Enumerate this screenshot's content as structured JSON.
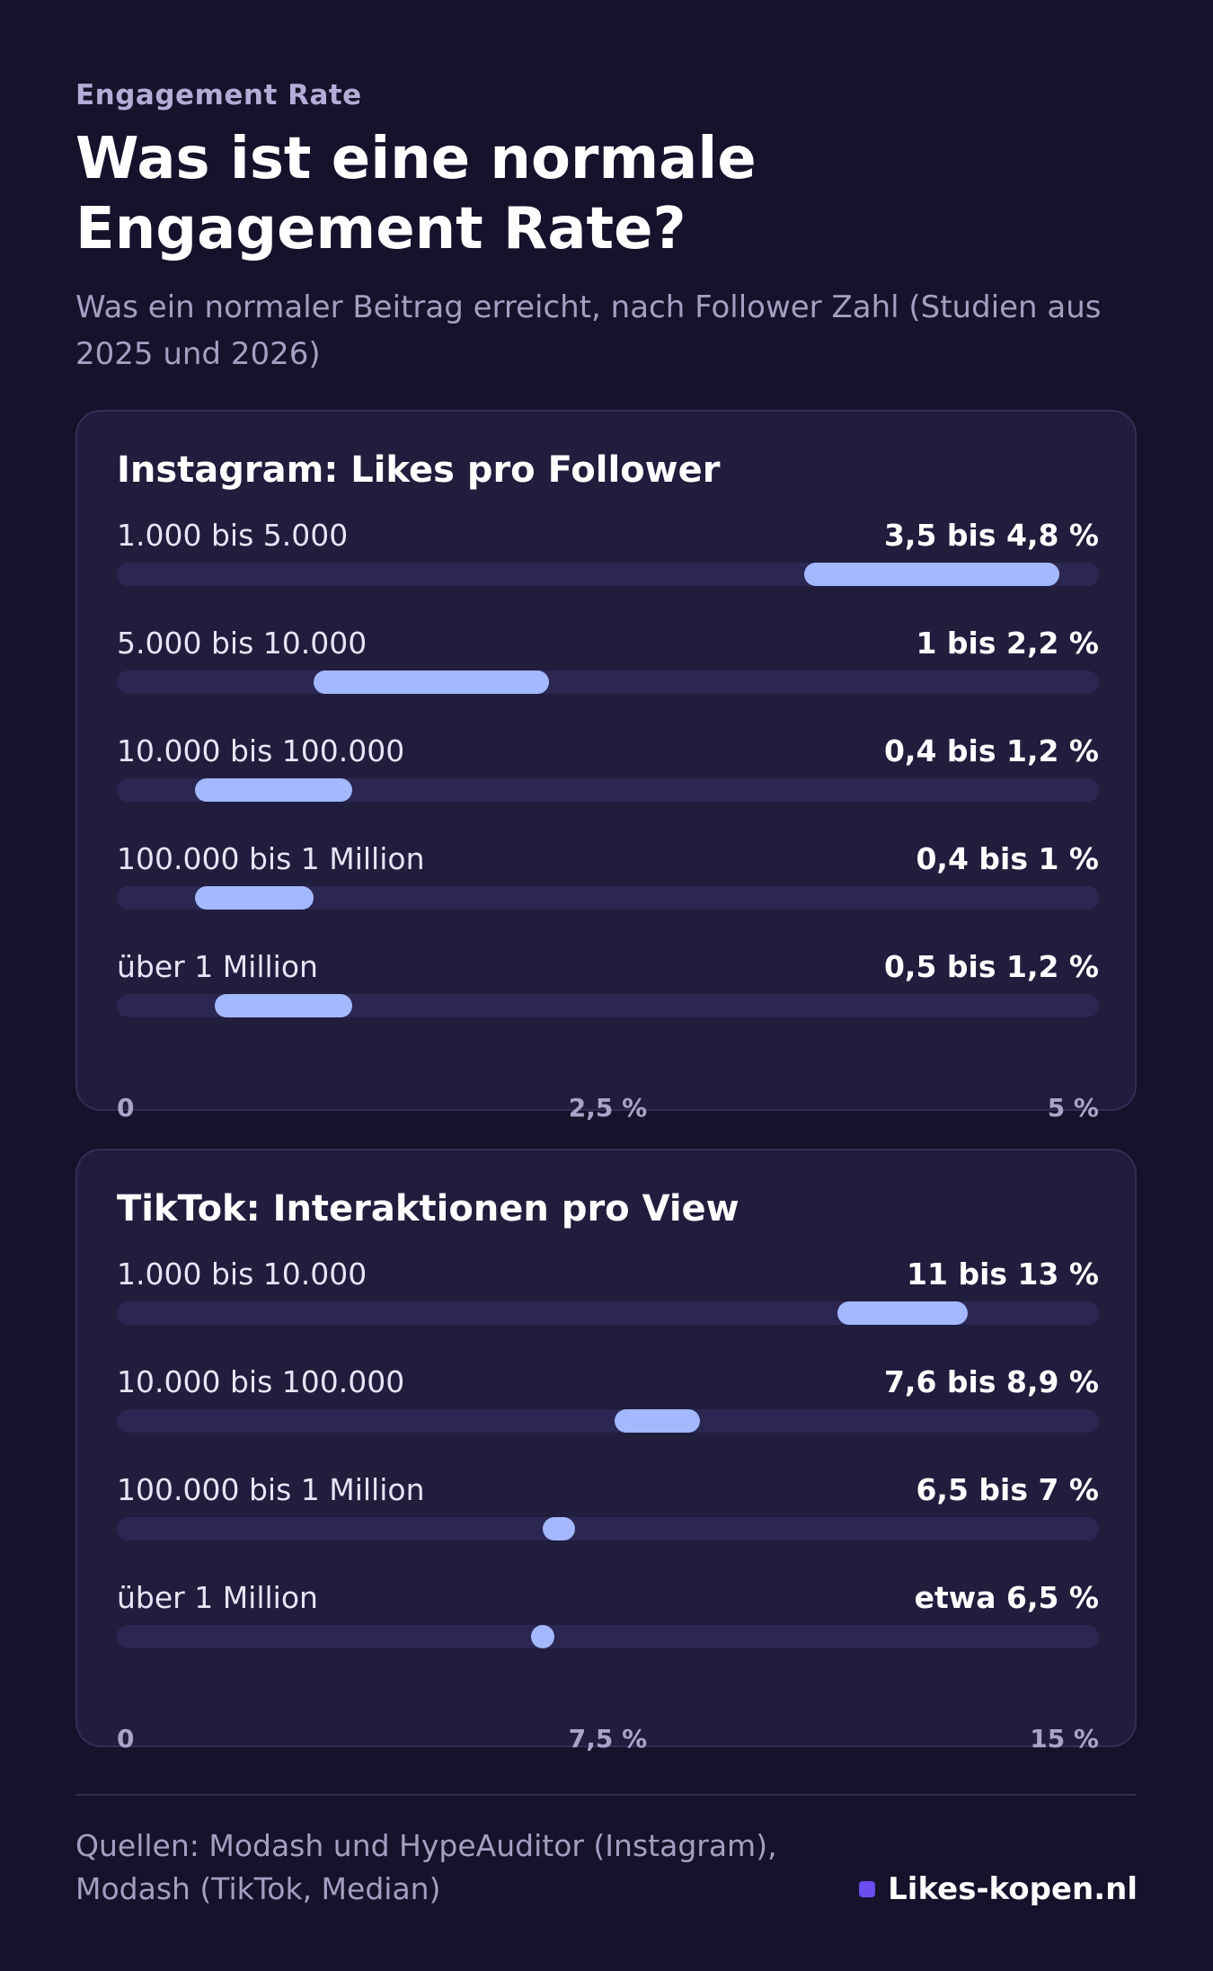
{
  "eyebrow": "Engagement Rate",
  "title": "Was ist eine normale Engagement Rate?",
  "subtitle": "Was ein normaler Beitrag erreicht, nach Follower Zahl (Studien aus 2025 und 2026)",
  "chart_data": [
    {
      "type": "bar",
      "title": "Instagram: Likes pro Follower",
      "categories": [
        "1.000 bis 5.000",
        "5.000 bis 10.000",
        "10.000 bis 100.000",
        "100.000 bis 1 Million",
        "über 1 Million"
      ],
      "value_labels": [
        "3,5 bis 4,8 %",
        "1 bis 2,2 %",
        "0,4 bis 1,2 %",
        "0,4 bis 1 %",
        "0,5 bis 1,2 %"
      ],
      "ranges": [
        [
          3.5,
          4.8
        ],
        [
          1.0,
          2.2
        ],
        [
          0.4,
          1.2
        ],
        [
          0.4,
          1.0
        ],
        [
          0.5,
          1.2
        ]
      ],
      "xlim": [
        0,
        5
      ],
      "ticks": [
        "0",
        "2,5 %",
        "5 %"
      ],
      "grid": false
    },
    {
      "type": "bar",
      "title": "TikTok: Interaktionen pro View",
      "categories": [
        "1.000 bis 10.000",
        "10.000 bis 100.000",
        "100.000 bis 1 Million",
        "über 1 Million"
      ],
      "value_labels": [
        "11 bis 13 %",
        "7,6 bis 8,9 %",
        "6,5 bis 7 %",
        "etwa 6,5 %"
      ],
      "ranges": [
        [
          11,
          13
        ],
        [
          7.6,
          8.9
        ],
        [
          6.5,
          7
        ],
        [
          6.5,
          6.5
        ]
      ],
      "xlim": [
        0,
        15
      ],
      "ticks": [
        "0",
        "7,5 %",
        "15 %"
      ],
      "grid": false
    }
  ],
  "colors": {
    "background": "#15122b",
    "card": "#201d3d",
    "track": "#2b2752",
    "bar": "#a3b8ff",
    "brand_accent": "#6a4cf0"
  },
  "footer": {
    "source": "Quellen: Modash und HypeAuditor (Instagram), Modash (TikTok, Median)",
    "brand": "Likes-kopen.nl"
  }
}
